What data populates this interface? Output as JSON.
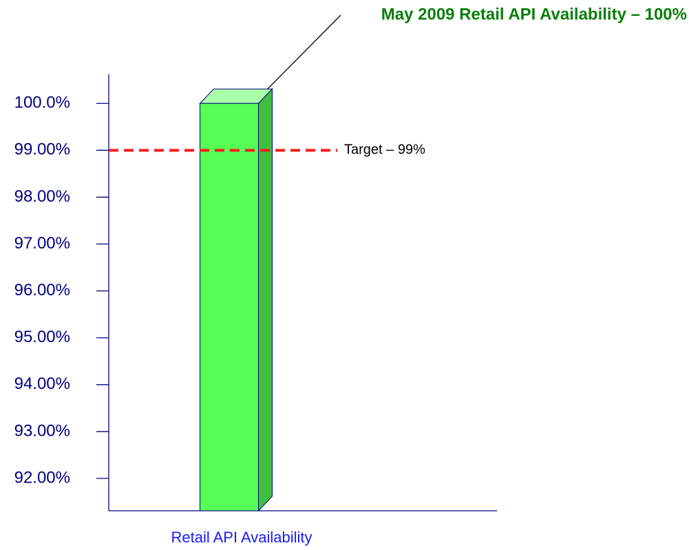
{
  "chart_data": {
    "type": "bar",
    "title": "May 2009 Retail API Availability – 100%",
    "categories": [
      "Retail API Availability"
    ],
    "values": [
      100
    ],
    "color": "#55ff55",
    "ylim": [
      91.31,
      100.62
    ],
    "yticks": [
      {
        "value": 92,
        "label": "92.00%"
      },
      {
        "value": 93,
        "label": "93.00%"
      },
      {
        "value": 94,
        "label": "94.00%"
      },
      {
        "value": 95,
        "label": "95.00%"
      },
      {
        "value": 96,
        "label": "96.00%"
      },
      {
        "value": 97,
        "label": "97.00%"
      },
      {
        "value": 98,
        "label": "98.00%"
      },
      {
        "value": 99,
        "label": "99.00%"
      },
      {
        "value": 100,
        "label": "100.0%"
      }
    ],
    "target": {
      "value": 99,
      "label": "Target – 99%",
      "color": "#ff1a1a"
    }
  }
}
